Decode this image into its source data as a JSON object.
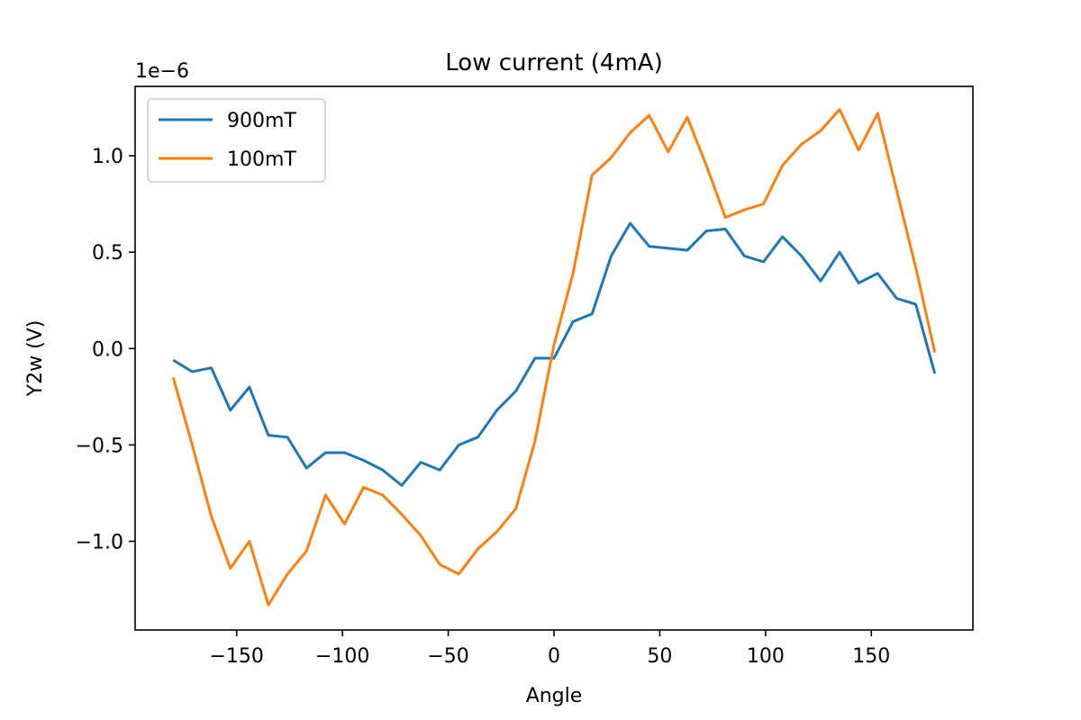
{
  "chart_data": {
    "type": "line",
    "title": "Low current (4mA)",
    "xlabel": "Angle",
    "ylabel": "Y2w (V)",
    "y_offset_label": "1e−6",
    "xlim": [
      -198,
      198
    ],
    "ylim": [
      -1.46e-06,
      1.36e-06
    ],
    "x_ticks": [
      -150,
      -100,
      -50,
      0,
      50,
      100,
      150
    ],
    "x_tick_labels": [
      "−150",
      "−100",
      "−50",
      "0",
      "50",
      "100",
      "150"
    ],
    "y_ticks": [
      -1e-06,
      -5e-07,
      0,
      5e-07,
      1e-06
    ],
    "y_tick_labels": [
      "−1.0",
      "−0.5",
      "0.0",
      "0.5",
      "1.0"
    ],
    "grid": false,
    "legend_position": "top-left",
    "x": [
      -180,
      -171,
      -162,
      -153,
      -144,
      -135,
      -126,
      -117,
      -108,
      -99,
      -90,
      -81,
      -72,
      -63,
      -54,
      -45,
      -36,
      -27,
      -18,
      -9,
      0,
      9,
      18,
      27,
      36,
      45,
      54,
      63,
      72,
      81,
      90,
      99,
      108,
      117,
      126,
      135,
      144,
      153,
      162,
      171,
      180
    ],
    "series": [
      {
        "name": "900mT",
        "color": "#1f77b4",
        "values": [
          -6e-08,
          -1.2e-07,
          -1e-07,
          -3.2e-07,
          -2e-07,
          -4.5e-07,
          -4.6e-07,
          -6.2e-07,
          -5.4e-07,
          -5.4e-07,
          -5.8e-07,
          -6.3e-07,
          -7.1e-07,
          -5.9e-07,
          -6.3e-07,
          -5e-07,
          -4.6e-07,
          -3.2e-07,
          -2.2e-07,
          -5e-08,
          -5e-08,
          1.4e-07,
          1.8e-07,
          4.8e-07,
          6.5e-07,
          5.3e-07,
          5.2e-07,
          5.1e-07,
          6.1e-07,
          6.2e-07,
          4.8e-07,
          4.5e-07,
          5.8e-07,
          4.8e-07,
          3.5e-07,
          5e-07,
          3.4e-07,
          3.9e-07,
          2.6e-07,
          2.3e-07,
          -1.3e-07
        ]
      },
      {
        "name": "100mT",
        "color": "#ff7f0e",
        "values": [
          -1.5e-07,
          -5e-07,
          -8.7e-07,
          -1.14e-06,
          -1e-06,
          -1.33e-06,
          -1.17e-06,
          -1.05e-06,
          -7.6e-07,
          -9.1e-07,
          -7.2e-07,
          -7.6e-07,
          -8.6e-07,
          -9.7e-07,
          -1.12e-06,
          -1.17e-06,
          -1.04e-06,
          -9.5e-07,
          -8.3e-07,
          -4.8e-07,
          2e-08,
          3.9e-07,
          9e-07,
          9.9e-07,
          1.12e-06,
          1.21e-06,
          1.02e-06,
          1.2e-06,
          9.5e-07,
          6.8e-07,
          7.2e-07,
          7.5e-07,
          9.5e-07,
          1.06e-06,
          1.13e-06,
          1.24e-06,
          1.03e-06,
          1.22e-06,
          8.2e-07,
          4.2e-07,
          -2e-08
        ]
      }
    ]
  }
}
